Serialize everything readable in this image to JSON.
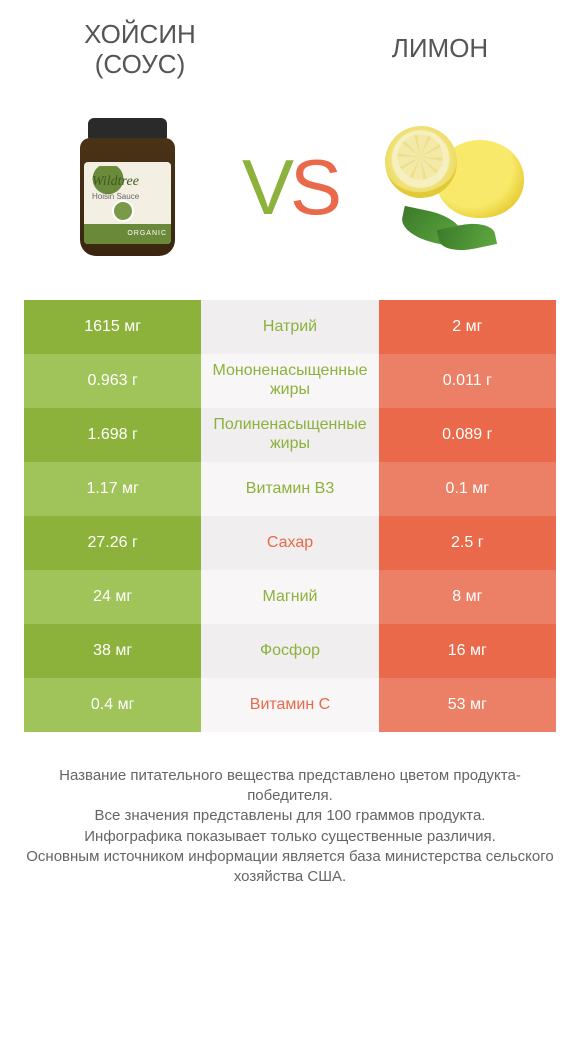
{
  "header": {
    "left_title_line1": "ХОЙСИН",
    "left_title_line2": "(СОУС)",
    "right_title": "ЛИМОН"
  },
  "vs": {
    "v": "V",
    "s": "S"
  },
  "jar": {
    "brand": "Wildtree",
    "sub": "Hoisin Sauce",
    "band": "ORGANIC"
  },
  "colors": {
    "green_dark": "#8cb23c",
    "green_light": "#a1c45a",
    "red_dark": "#e9694a",
    "red_light": "#ec8066",
    "gray_dark": "#f0eeee",
    "gray_light": "#f8f6f6",
    "winner_green": "#8cb23c",
    "winner_red": "#e9694a",
    "text": "#555555"
  },
  "table": {
    "label_fontsize": 16,
    "value_fontsize": 16,
    "rows": [
      {
        "label": "Натрий",
        "left": "1615 мг",
        "right": "2 мг",
        "winner": "left"
      },
      {
        "label": "Мононенасыщенные жиры",
        "left": "0.963 г",
        "right": "0.011 г",
        "winner": "left"
      },
      {
        "label": "Полиненасыщенные жиры",
        "left": "1.698 г",
        "right": "0.089 г",
        "winner": "left"
      },
      {
        "label": "Витамин B3",
        "left": "1.17 мг",
        "right": "0.1 мг",
        "winner": "left"
      },
      {
        "label": "Сахар",
        "left": "27.26 г",
        "right": "2.5 г",
        "winner": "right"
      },
      {
        "label": "Магний",
        "left": "24 мг",
        "right": "8 мг",
        "winner": "left"
      },
      {
        "label": "Фосфор",
        "left": "38 мг",
        "right": "16 мг",
        "winner": "left"
      },
      {
        "label": "Витамин C",
        "left": "0.4 мг",
        "right": "53 мг",
        "winner": "right"
      }
    ]
  },
  "footer": {
    "line1": "Название питательного вещества представлено цветом продукта-победителя.",
    "line2": "Все значения представлены для 100 граммов продукта.",
    "line3": "Инфографика показывает только существенные различия.",
    "line4": "Основным источником информации является база министерства сельского хозяйства США."
  }
}
